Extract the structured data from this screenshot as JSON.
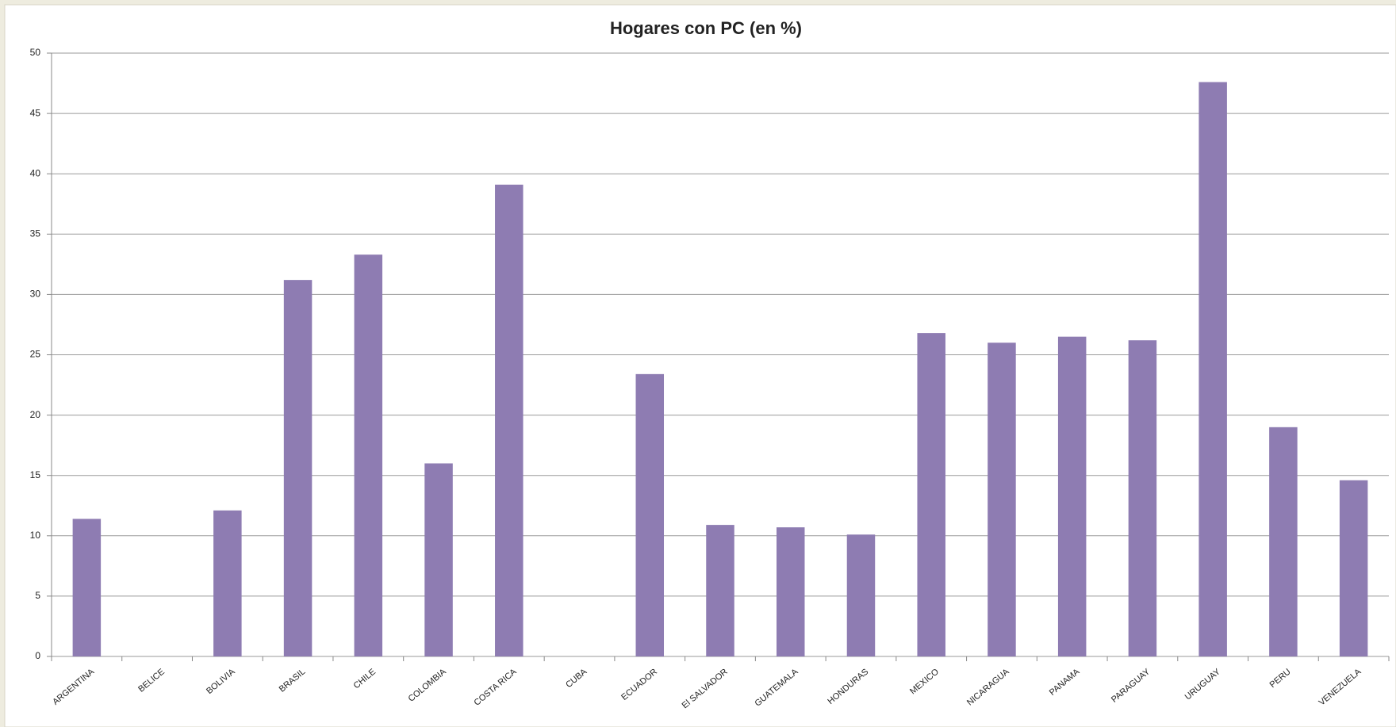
{
  "chart_data": {
    "type": "bar",
    "title": "Hogares con PC (en %)",
    "categories": [
      "ARGENTINA",
      "BELICE",
      "BOLIVIA",
      "BRASIL",
      "CHILE",
      "COLOMBIA",
      "COSTA RICA",
      "CUBA",
      "ECUADOR",
      "El SALVADOR",
      "GUATEMALA",
      "HONDURAS",
      "MEXICO",
      "NICARAGUA",
      "PANAMA",
      "PARAGUAY",
      "URUGUAY",
      "PERU",
      "VENEZUELA"
    ],
    "values": [
      11.4,
      null,
      12.1,
      31.2,
      33.3,
      16.0,
      39.1,
      null,
      23.4,
      10.9,
      10.7,
      10.1,
      26.8,
      26.0,
      26.5,
      26.2,
      47.6,
      19.0,
      14.6
    ],
    "color": "#8e7cb2",
    "ylim": [
      0,
      50
    ],
    "yticks": [
      0,
      5,
      10,
      15,
      20,
      25,
      30,
      35,
      40,
      45,
      50
    ],
    "grid": true
  }
}
